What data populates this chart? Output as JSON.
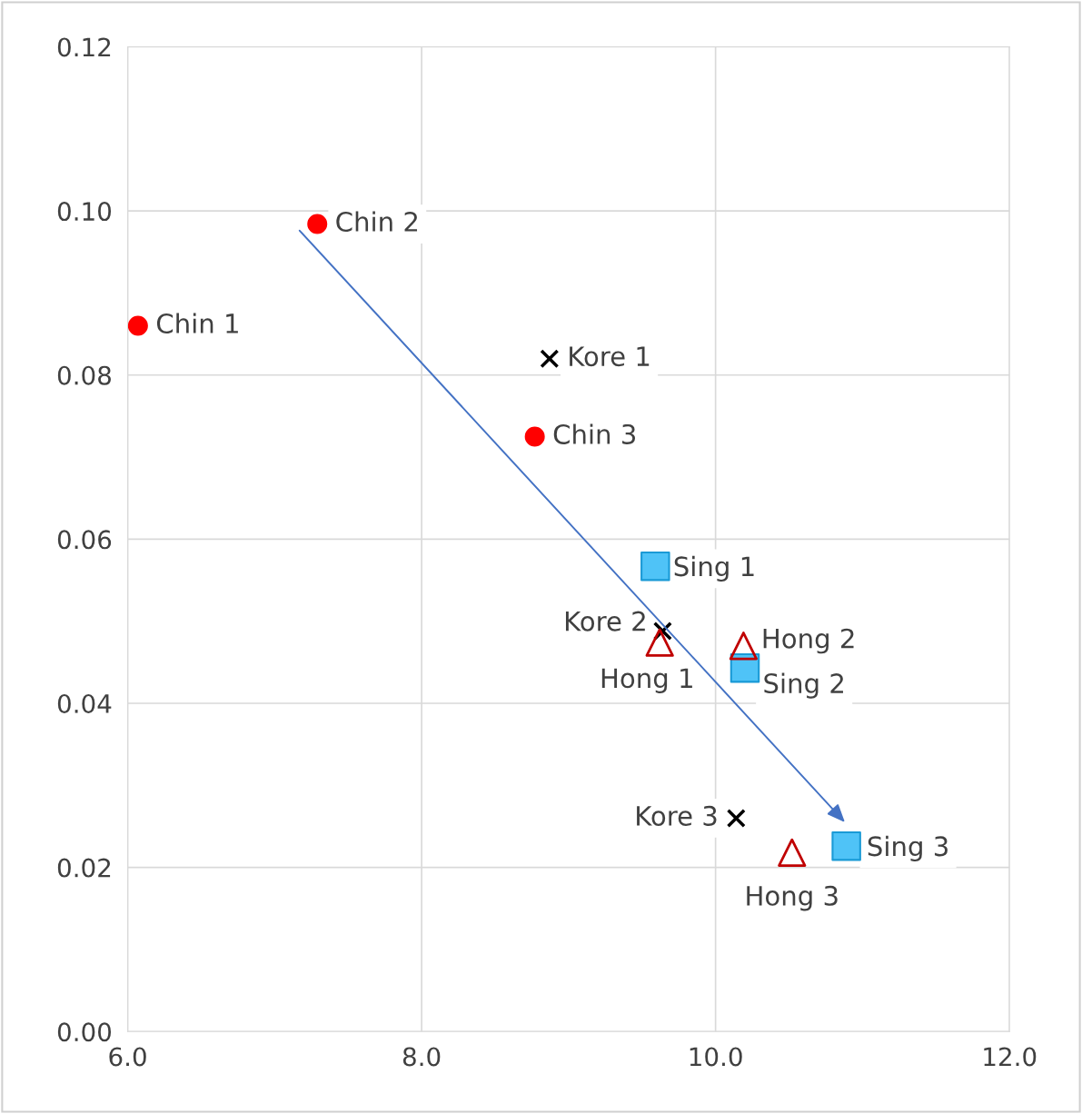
{
  "chart_data": {
    "type": "scatter",
    "xlim": [
      6.0,
      12.0
    ],
    "ylim": [
      0.0,
      0.12
    ],
    "xticks": [
      {
        "value": 6,
        "label": "6.0"
      },
      {
        "value": 8,
        "label": "8.0"
      },
      {
        "value": 10,
        "label": "10.0"
      },
      {
        "value": 12,
        "label": "12.0"
      }
    ],
    "yticks": [
      {
        "value": 0,
        "label": "0.00"
      },
      {
        "value": 0.02,
        "label": "0.02"
      },
      {
        "value": 0.04,
        "label": "0.04"
      },
      {
        "value": 0.06,
        "label": "0.06"
      },
      {
        "value": 0.08,
        "label": "0.08"
      },
      {
        "value": 0.1,
        "label": "0.10"
      },
      {
        "value": 0.12,
        "label": "0.12"
      }
    ],
    "grid": true,
    "legend": false,
    "series": [
      {
        "marker": "circle",
        "color": "#ff0000",
        "x": [
          6.07,
          7.29,
          8.77
        ],
        "values": [
          0.086,
          0.0984,
          0.0725
        ],
        "value_labels": [
          "Chin 1",
          "Chin 2",
          "Chin 3"
        ]
      },
      {
        "marker": "cross",
        "color": "#000000",
        "x": [
          8.87,
          9.64,
          10.14
        ],
        "values": [
          0.082,
          0.0488,
          0.026
        ],
        "value_labels": [
          "Kore 1",
          "Kore 2",
          "Kore 3"
        ]
      },
      {
        "marker": "square",
        "color": "#4fc3f7",
        "x": [
          9.59,
          10.2,
          10.89
        ],
        "values": [
          0.0567,
          0.0443,
          0.0226
        ],
        "value_labels": [
          "Sing 1",
          "Sing 2",
          "Sing 3"
        ]
      },
      {
        "marker": "triangle",
        "color": "#c00000",
        "x": [
          9.62,
          10.19,
          10.52
        ],
        "values": [
          0.0474,
          0.047,
          0.0218
        ],
        "value_labels": [
          "Hong 1",
          "Hong 2",
          "Hong 3"
        ]
      },
      {
        "type": "line",
        "color": "#4472c4",
        "x": [
          7.17,
          10.88
        ],
        "values": [
          0.0976,
          0.0255
        ]
      }
    ]
  }
}
